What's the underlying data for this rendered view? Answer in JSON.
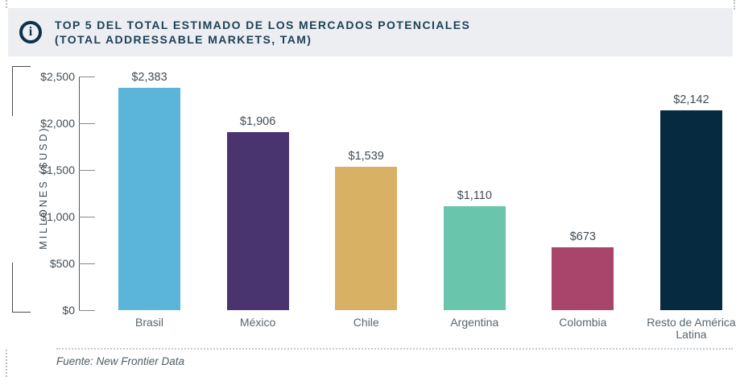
{
  "header": {
    "icon": "info-icon",
    "icon_glyph": "i",
    "title_line1": "TOP 5 DEL TOTAL ESTIMADO DE LOS MERCADOS POTENCIALES",
    "title_line2": "(TOTAL ADDRESSABLE MARKETS, TAM)"
  },
  "chart_data": {
    "type": "bar",
    "title": "TOP 5 DEL TOTAL ESTIMADO DE LOS MERCADOS POTENCIALES (TOTAL ADDRESSABLE MARKETS, TAM)",
    "ylabel": "MILLONES ($USD)",
    "xlabel": "",
    "ylim": [
      0,
      2500
    ],
    "ytick_labels": [
      "$2,500",
      "$2,000",
      "$1,500",
      "$1,000",
      "$500",
      "$0"
    ],
    "ytick_values": [
      2500,
      2000,
      1500,
      1000,
      500,
      0
    ],
    "categories": [
      "Brasil",
      "México",
      "Chile",
      "Argentina",
      "Colombia",
      "Resto de América Latina"
    ],
    "values": [
      2383,
      1906,
      1539,
      1110,
      673,
      2142
    ],
    "value_labels": [
      "$2,383",
      "$1,906",
      "$1,539",
      "$1,110",
      "$673",
      "$2,142"
    ],
    "bar_colors": [
      "#5BB4D9",
      "#4A3470",
      "#D8B165",
      "#6AC5AD",
      "#A9446B",
      "#062A40"
    ],
    "grid": false,
    "legend": "none"
  },
  "footer": {
    "source": "Fuente: New Frontier Data"
  }
}
